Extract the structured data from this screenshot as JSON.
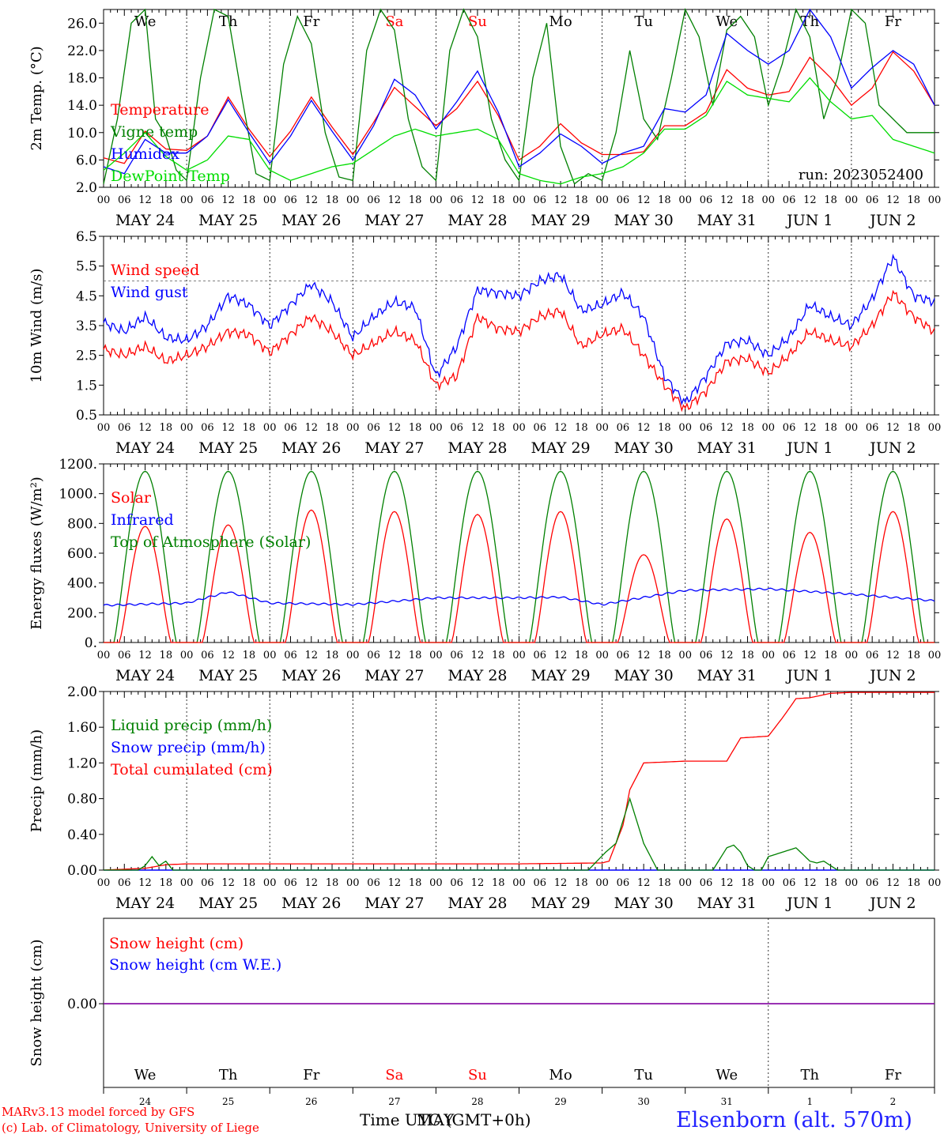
{
  "chart_data": [
    {
      "id": "temp",
      "type": "line",
      "ylabel": "2m Temp. (°C)",
      "ylim": [
        2.0,
        28.0
      ],
      "yticks": [
        "2.0",
        "6.0",
        "10.0",
        "14.0",
        "18.0",
        "22.0",
        "26.0"
      ],
      "ytick_values": [
        2,
        6,
        10,
        14,
        18,
        22,
        26
      ],
      "top_days": [
        {
          "label": "We",
          "color": "#000000"
        },
        {
          "label": "Th",
          "color": "#000000"
        },
        {
          "label": "Fr",
          "color": "#000000"
        },
        {
          "label": "Sa",
          "color": "#ff0000"
        },
        {
          "label": "Su",
          "color": "#ff0000"
        },
        {
          "label": "Mo",
          "color": "#000000"
        },
        {
          "label": "Tu",
          "color": "#000000"
        },
        {
          "label": "We",
          "color": "#000000"
        },
        {
          "label": "Th",
          "color": "#000000"
        },
        {
          "label": "Fr",
          "color": "#000000"
        }
      ],
      "run_label": "run: 2023052400",
      "legend": [
        {
          "label": "Temperature",
          "color": "#ff0000"
        },
        {
          "label": "Vigne temp",
          "color": "#008000"
        },
        {
          "label": "Humidex",
          "color": "#0000ff"
        },
        {
          "label": "DewPoint Temp",
          "color": "#00dd00"
        }
      ],
      "series": [
        {
          "name": "Temperature",
          "color": "#ff0000",
          "x": [
            0,
            6,
            12,
            18,
            24,
            30,
            36,
            42,
            48,
            54,
            60,
            66,
            72,
            78,
            84,
            90,
            96,
            102,
            108,
            114,
            120,
            126,
            132,
            138,
            144,
            150,
            156,
            162,
            168,
            174,
            180,
            186,
            192,
            198,
            204,
            210,
            216,
            222,
            228,
            234,
            240
          ],
          "values": [
            6.3,
            5.5,
            10.2,
            7.6,
            7.4,
            9.5,
            15.2,
            10.5,
            6.5,
            10.2,
            15.2,
            10.8,
            6.8,
            11.5,
            16.6,
            13.8,
            11.0,
            13.5,
            17.5,
            12.5,
            6.0,
            8.0,
            11.3,
            8.5,
            6.8,
            6.8,
            7.2,
            11.0,
            11.0,
            13.0,
            19.2,
            16.5,
            15.5,
            16.0,
            21.0,
            18.0,
            14.0,
            16.5,
            21.8,
            19.0,
            14.0
          ]
        },
        {
          "name": "Vigne temp",
          "color": "#008000",
          "x": [
            0,
            4,
            8,
            12,
            15,
            18,
            21,
            24,
            28,
            32,
            36,
            40,
            44,
            48,
            52,
            56,
            60,
            64,
            68,
            72,
            76,
            80,
            84,
            88,
            92,
            96,
            100,
            104,
            108,
            112,
            116,
            120,
            124,
            128,
            132,
            136,
            140,
            144,
            148,
            152,
            156,
            160,
            164,
            168,
            172,
            176,
            180,
            184,
            188,
            192,
            196,
            200,
            204,
            208,
            212,
            216,
            220,
            224,
            228,
            232,
            236,
            240
          ],
          "values": [
            2.5,
            12,
            26,
            28,
            12,
            9.5,
            4.5,
            3.0,
            18,
            28,
            27,
            15,
            4,
            3.0,
            20,
            27,
            23,
            10,
            3.5,
            3.0,
            22,
            28,
            25,
            12,
            5,
            3.0,
            22,
            28,
            24,
            12,
            6,
            3.0,
            18,
            26,
            8,
            2.5,
            4,
            3,
            10,
            22,
            12,
            9,
            18,
            28,
            24,
            14,
            25,
            27,
            24,
            14,
            20,
            28,
            24,
            12,
            18,
            28,
            26,
            14,
            12,
            10,
            10,
            10
          ]
        },
        {
          "name": "Humidex",
          "color": "#0000ff",
          "x": [
            0,
            6,
            12,
            18,
            24,
            30,
            36,
            42,
            48,
            54,
            60,
            66,
            72,
            78,
            84,
            90,
            96,
            102,
            108,
            114,
            120,
            126,
            132,
            138,
            144,
            150,
            156,
            162,
            168,
            174,
            180,
            186,
            192,
            198,
            204,
            210,
            216,
            222,
            228,
            234,
            240
          ],
          "values": [
            5.0,
            4.0,
            9.0,
            7.0,
            7.0,
            9.5,
            14.8,
            10.0,
            5.5,
            9.5,
            14.7,
            10.2,
            6.0,
            11.0,
            17.8,
            15.5,
            10.5,
            14.5,
            19.0,
            13.0,
            5.0,
            7.0,
            9.8,
            8.0,
            5.5,
            7.0,
            8.0,
            13.5,
            13.0,
            15.5,
            24.5,
            22.0,
            20.0,
            22.0,
            28.0,
            24.0,
            16.5,
            19.5,
            22.0,
            20.0,
            14.0
          ]
        },
        {
          "name": "DewPoint Temp",
          "color": "#00dd00",
          "x": [
            0,
            6,
            12,
            18,
            24,
            30,
            36,
            42,
            48,
            54,
            60,
            66,
            72,
            78,
            84,
            90,
            96,
            102,
            108,
            114,
            120,
            126,
            132,
            138,
            144,
            150,
            156,
            162,
            168,
            174,
            180,
            186,
            192,
            198,
            204,
            210,
            216,
            222,
            228,
            234,
            240
          ],
          "values": [
            4.5,
            7.0,
            10.0,
            6.5,
            4.5,
            6.0,
            9.5,
            9.0,
            4.5,
            3.0,
            4.0,
            5.0,
            5.5,
            7.5,
            9.5,
            10.5,
            9.5,
            10.0,
            10.5,
            9.0,
            4.0,
            3.0,
            2.5,
            3.5,
            4.0,
            5.0,
            7.0,
            10.5,
            10.5,
            12.5,
            17.5,
            15.5,
            15.0,
            14.5,
            18.0,
            14.5,
            12.0,
            12.5,
            9.0,
            8.0,
            7.0
          ]
        }
      ]
    },
    {
      "id": "wind",
      "type": "line",
      "ylabel": "10m Wind (m/s)",
      "ylim": [
        0.5,
        6.5
      ],
      "yticks": [
        "0.5",
        "1.5",
        "2.5",
        "3.5",
        "4.5",
        "5.5",
        "6.5"
      ],
      "ytick_values": [
        0.5,
        1.5,
        2.5,
        3.5,
        4.5,
        5.5,
        6.5
      ],
      "legend": [
        {
          "label": "Wind speed",
          "color": "#ff0000"
        },
        {
          "label": "Wind gust",
          "color": "#0000ff"
        }
      ],
      "series": [
        {
          "name": "Wind speed",
          "color": "#ff0000",
          "x": [
            0,
            6,
            12,
            18,
            24,
            30,
            36,
            42,
            48,
            54,
            60,
            66,
            72,
            78,
            84,
            90,
            96,
            102,
            108,
            114,
            120,
            126,
            132,
            138,
            144,
            150,
            156,
            162,
            168,
            174,
            180,
            186,
            192,
            198,
            204,
            210,
            216,
            222,
            228,
            234,
            240
          ],
          "values": [
            2.7,
            2.5,
            2.8,
            2.3,
            2.5,
            2.8,
            3.3,
            3.2,
            2.6,
            3.2,
            3.8,
            3.3,
            2.5,
            2.9,
            3.3,
            3.0,
            1.5,
            1.8,
            3.8,
            3.4,
            3.3,
            3.8,
            4.0,
            2.8,
            3.2,
            3.4,
            2.5,
            1.5,
            0.7,
            1.3,
            2.3,
            2.4,
            1.9,
            2.5,
            3.3,
            3.0,
            2.8,
            3.5,
            4.6,
            3.8,
            3.3
          ]
        },
        {
          "name": "Wind gust",
          "color": "#0000ff",
          "x": [
            0,
            6,
            12,
            18,
            24,
            30,
            36,
            42,
            48,
            54,
            60,
            66,
            72,
            78,
            84,
            90,
            96,
            102,
            108,
            114,
            120,
            126,
            132,
            138,
            144,
            150,
            156,
            162,
            168,
            174,
            180,
            186,
            192,
            198,
            204,
            210,
            216,
            222,
            228,
            234,
            240
          ],
          "values": [
            3.6,
            3.3,
            3.8,
            3.1,
            3.0,
            3.5,
            4.5,
            4.2,
            3.5,
            4.2,
            4.9,
            4.3,
            3.1,
            3.8,
            4.3,
            4.1,
            1.8,
            2.8,
            4.7,
            4.6,
            4.5,
            5.0,
            5.2,
            4.0,
            4.2,
            4.6,
            3.8,
            1.8,
            0.9,
            1.8,
            2.9,
            3.0,
            2.5,
            3.1,
            4.2,
            3.8,
            3.5,
            4.4,
            5.8,
            4.5,
            4.3
          ]
        }
      ]
    },
    {
      "id": "energy",
      "type": "line",
      "ylabel": "Energy fluxes (W/m²)",
      "ylim": [
        0,
        1200
      ],
      "yticks": [
        "0.",
        "200.",
        "400.",
        "600.",
        "800.",
        "1000.",
        "1200."
      ],
      "ytick_values": [
        0,
        200,
        400,
        600,
        800,
        1000,
        1200
      ],
      "legend": [
        {
          "label": "Solar",
          "color": "#ff0000"
        },
        {
          "label": "Infrared",
          "color": "#0000ff"
        },
        {
          "label": "Top of Atmosphere (Solar)",
          "color": "#008000"
        }
      ],
      "toa_peak": 1150,
      "solar_peaks": [
        780,
        790,
        890,
        880,
        860,
        880,
        590,
        830,
        740,
        880
      ],
      "infrared": {
        "x": [
          0,
          24,
          36,
          48,
          72,
          96,
          120,
          132,
          144,
          168,
          192,
          216,
          240
        ],
        "values": [
          250,
          265,
          340,
          265,
          255,
          300,
          300,
          305,
          255,
          350,
          360,
          325,
          280
        ]
      }
    },
    {
      "id": "precip",
      "type": "line",
      "ylabel": "Precip (mm/h)",
      "ylim": [
        0.0,
        2.0
      ],
      "yticks": [
        "0.00",
        "0.40",
        "0.80",
        "1.20",
        "1.60",
        "2.00"
      ],
      "ytick_values": [
        0,
        0.4,
        0.8,
        1.2,
        1.6,
        2.0
      ],
      "legend": [
        {
          "label": "Liquid precip (mm/h)",
          "color": "#008000"
        },
        {
          "label": "Snow precip (mm/h)",
          "color": "#0000ff"
        },
        {
          "label": "Total cumulated (cm)",
          "color": "#ff0000"
        }
      ],
      "series": [
        {
          "name": "Total cumulated (cm)",
          "color": "#ff0000",
          "x": [
            0,
            12,
            18,
            24,
            48,
            72,
            96,
            120,
            144,
            146,
            150,
            152,
            156,
            162,
            168,
            180,
            184,
            192,
            196,
            200,
            204,
            210,
            216,
            240
          ],
          "values": [
            0.0,
            0.02,
            0.06,
            0.07,
            0.07,
            0.07,
            0.07,
            0.07,
            0.08,
            0.1,
            0.5,
            0.9,
            1.2,
            1.21,
            1.22,
            1.22,
            1.48,
            1.5,
            1.7,
            1.92,
            1.93,
            1.98,
            1.99,
            1.99
          ]
        },
        {
          "name": "Liquid precip (mm/h)",
          "color": "#008000",
          "x": [
            0,
            10,
            12,
            14,
            16,
            18,
            20,
            140,
            145,
            148,
            150,
            152,
            156,
            160,
            176,
            180,
            182,
            184,
            186,
            188,
            190,
            192,
            196,
            200,
            204,
            206,
            208,
            210,
            212,
            240
          ],
          "values": [
            0,
            0,
            0.05,
            0.15,
            0.05,
            0.1,
            0,
            0,
            0.2,
            0.3,
            0.55,
            0.8,
            0.3,
            0,
            0,
            0.25,
            0.28,
            0.2,
            0.05,
            0,
            0,
            0.15,
            0.2,
            0.25,
            0.1,
            0.08,
            0.1,
            0.05,
            0,
            0
          ]
        }
      ]
    },
    {
      "id": "snow",
      "type": "line",
      "ylabel": "Snow height (cm)",
      "yticks": [
        "0.00"
      ],
      "legend": [
        {
          "label": "Snow height (cm)",
          "color": "#ff0000"
        },
        {
          "label": "Snow height (cm W.E.)",
          "color": "#0000ff"
        }
      ],
      "bottom_days": [
        {
          "label": "We",
          "color": "#000000",
          "num": "24"
        },
        {
          "label": "Th",
          "color": "#000000",
          "num": "25"
        },
        {
          "label": "Fr",
          "color": "#000000",
          "num": "26"
        },
        {
          "label": "Sa",
          "color": "#ff0000",
          "num": "27"
        },
        {
          "label": "Su",
          "color": "#ff0000",
          "num": "28"
        },
        {
          "label": "Mo",
          "color": "#000000",
          "num": "29"
        },
        {
          "label": "Tu",
          "color": "#000000",
          "num": "30"
        },
        {
          "label": "We",
          "color": "#000000",
          "num": "31"
        },
        {
          "label": "Th",
          "color": "#000000",
          "num": "1"
        },
        {
          "label": "Fr",
          "color": "#000000",
          "num": "2"
        }
      ]
    }
  ],
  "hour_ticks": [
    "00",
    "06",
    "12",
    "18"
  ],
  "final_tick": "00",
  "date_labels": [
    "MAY 24",
    "MAY 25",
    "MAY 26",
    "MAY 27",
    "MAY 28",
    "MAY 29",
    "MAY 30",
    "MAY 31",
    "JUN  1",
    "JUN  2"
  ],
  "footer": {
    "credit_line1": "MARv3.13 model forced by GFS",
    "credit_line2": "(c) Lab. of Climatology, University of Liege",
    "time_label": "Time UTC (GMT+0h)",
    "month_label": "MAY",
    "station": "Elsenborn (alt. 570m)"
  }
}
